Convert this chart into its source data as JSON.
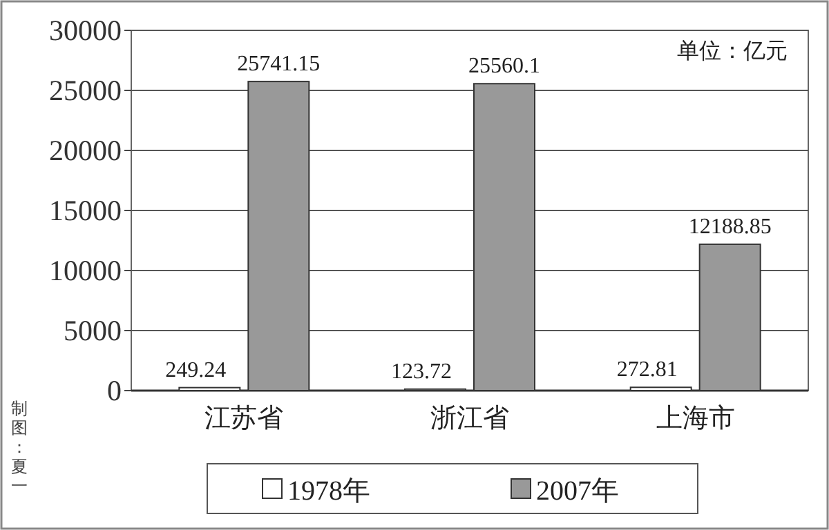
{
  "chart_data": {
    "type": "bar",
    "categories": [
      "江苏省",
      "浙江省",
      "上海市"
    ],
    "series": [
      {
        "name": "1978年",
        "color": "#ffffff",
        "values": [
          249.24,
          123.72,
          272.81
        ]
      },
      {
        "name": "2007年",
        "color": "#999999",
        "values": [
          25741.15,
          25560.1,
          12188.85
        ]
      }
    ],
    "ylim": [
      0,
      30000
    ],
    "yticks": [
      0,
      5000,
      10000,
      15000,
      20000,
      25000,
      30000
    ],
    "grid": "y",
    "legend": "bottom",
    "data_labels": true,
    "annotations": [
      "单位：亿元",
      "制图：夏一"
    ]
  }
}
